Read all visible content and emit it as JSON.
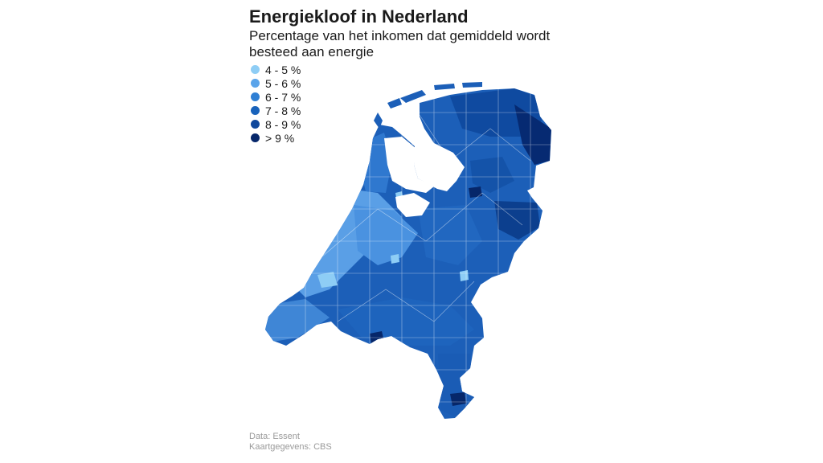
{
  "title": "Energiekloof in Nederland",
  "subtitle": "Percentage van het inkomen dat gemiddeld wordt besteed aan energie",
  "legend": [
    {
      "label": "4 - 5 %",
      "color": "#8ecdf5"
    },
    {
      "label": "5 - 6 %",
      "color": "#5aa4ea"
    },
    {
      "label": "6 - 7 %",
      "color": "#2f7fd4"
    },
    {
      "label": "7 - 8 %",
      "color": "#1862bb"
    },
    {
      "label": "8 - 9 %",
      "color": "#0e479b"
    },
    {
      "label": "> 9 %",
      "color": "#06276a"
    }
  ],
  "footer": {
    "source": "Data: Essent",
    "mapdata": "Kaartgegevens: CBS"
  }
}
